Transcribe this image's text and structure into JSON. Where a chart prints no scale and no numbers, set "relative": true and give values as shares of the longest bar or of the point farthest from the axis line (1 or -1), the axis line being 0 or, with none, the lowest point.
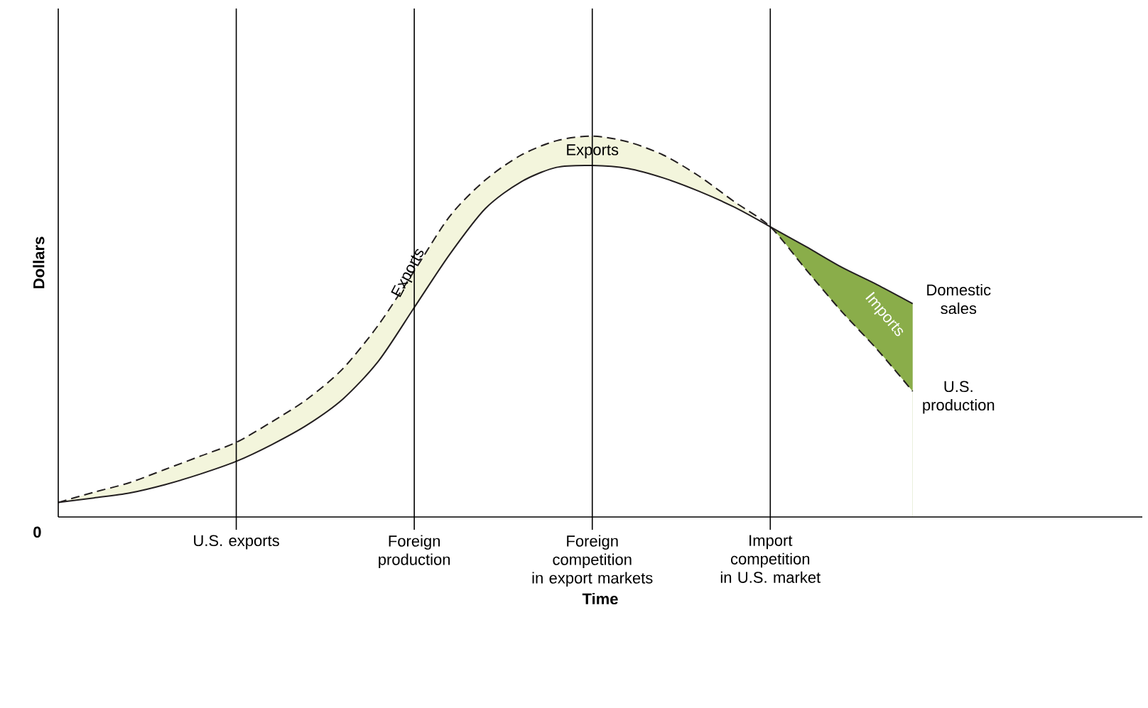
{
  "chart_data": {
    "type": "line",
    "relative": true,
    "xlabel": "Time",
    "ylabel": "Dollars",
    "categories": [
      null,
      null,
      null,
      null,
      null,
      "U.S. exports",
      null,
      null,
      null,
      null,
      "Foreign production",
      null,
      null,
      null,
      null,
      "Foreign competition in export markets",
      null,
      null,
      null,
      null,
      "Import competition in U.S. market",
      null,
      null,
      null,
      null,
      null,
      null,
      null,
      null,
      null,
      null
    ],
    "grid": "x",
    "series": [
      {
        "type": "area",
        "color": "#f3f5dc",
        "values": [
          0.038,
          0.065,
          0.09,
          0.125,
          0.16,
          0.196,
          0.25,
          0.31,
          0.39,
          0.505,
          0.646,
          0.79,
          0.885,
          0.95,
          0.988,
          1.0,
          0.985,
          0.95,
          0.895,
          0.827,
          0.762,
          null,
          null,
          null,
          null,
          null,
          null,
          null,
          null,
          null,
          null
        ]
      },
      {
        "type": "area",
        "color": "#8aad4a",
        "values": [
          null,
          null,
          null,
          null,
          null,
          null,
          null,
          null,
          null,
          null,
          null,
          null,
          null,
          null,
          null,
          null,
          null,
          null,
          null,
          null,
          0.762,
          0.71,
          0.656,
          0.61,
          0.56,
          null,
          null,
          null,
          null,
          null,
          null
        ]
      },
      {
        "type": "area",
        "color": "#ffffff",
        "values": [
          0.038,
          0.05,
          0.063,
          0.085,
          0.113,
          0.146,
          0.19,
          0.242,
          0.31,
          0.41,
          0.55,
          0.69,
          0.81,
          0.88,
          0.918,
          0.923,
          0.915,
          0.89,
          0.855,
          0.813,
          0.762,
          0.65,
          0.54,
          0.44,
          0.33,
          null,
          null,
          null,
          null,
          null,
          null
        ]
      },
      {
        "name": "Domestic sales",
        "color": "#231f20",
        "line_style": "solid",
        "values": [
          0.038,
          0.05,
          0.063,
          0.085,
          0.113,
          0.146,
          0.19,
          0.242,
          0.31,
          0.41,
          0.55,
          0.69,
          0.81,
          0.88,
          0.918,
          0.923,
          0.915,
          0.89,
          0.855,
          0.813,
          0.762,
          0.71,
          0.656,
          0.61,
          0.56,
          null,
          null,
          null,
          null,
          null,
          null
        ]
      },
      {
        "name": "U.S. production",
        "color": "#231f20",
        "line_style": "dashed",
        "values": [
          0.038,
          0.065,
          0.09,
          0.125,
          0.16,
          0.196,
          0.25,
          0.31,
          0.39,
          0.505,
          0.646,
          0.79,
          0.885,
          0.95,
          0.988,
          1.0,
          0.985,
          0.95,
          0.895,
          0.827,
          0.762,
          0.65,
          0.54,
          0.44,
          0.33,
          null,
          null,
          null,
          null,
          null,
          null
        ]
      }
    ],
    "annotations": [
      "0",
      "Exports",
      "Exports",
      "Imports"
    ]
  }
}
